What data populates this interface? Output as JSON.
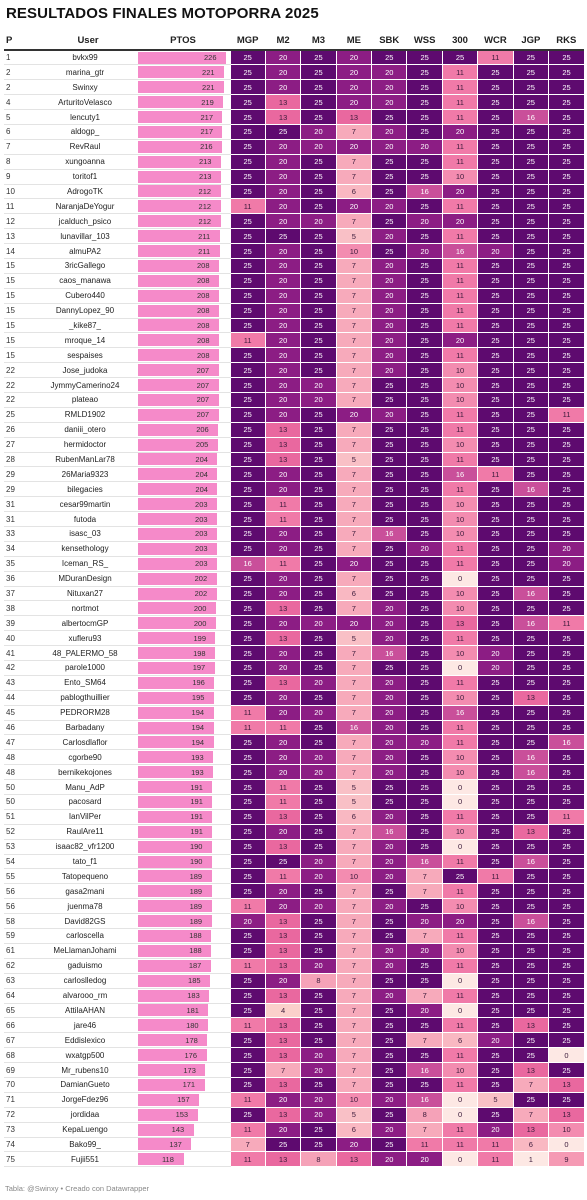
{
  "page": {
    "title": "RESULTADOS FINALES MOTOPORRA 2025",
    "footer": "Tabla: @Swinxy • Creado con Datawrapper"
  },
  "colors": {
    "bar": "#f58ac9",
    "score_scale": {
      "0": "#fde8e4",
      "1": "#fde8e4",
      "4": "#fbd0cb",
      "5": "#f9c0c6",
      "6": "#f9b8c2",
      "7": "#f7aabb",
      "8": "#f5a2b8",
      "9": "#f59ab4",
      "10": "#f38cb0",
      "11": "#f07aa8",
      "13": "#e9689f",
      "16": "#c94f9a",
      "20": "#8c1d84",
      "25": "#5e0a6f"
    }
  },
  "chart_data": {
    "type": "table",
    "columns": [
      "P",
      "User",
      "PTOS",
      "MGP",
      "M2",
      "M3",
      "ME",
      "SBK",
      "WSS",
      "300",
      "WCR",
      "JGP",
      "RKS"
    ],
    "pts_max": 226,
    "rows": [
      {
        "p": "1",
        "user": "bvkx99",
        "pts": 226,
        "scores": [
          25,
          20,
          25,
          20,
          25,
          25,
          25,
          11,
          25,
          25
        ]
      },
      {
        "p": "2",
        "user": "marina_gtr",
        "pts": 221,
        "scores": [
          25,
          20,
          25,
          20,
          20,
          25,
          11,
          25,
          25,
          25
        ]
      },
      {
        "p": "2",
        "user": "Swinxy",
        "pts": 221,
        "scores": [
          25,
          20,
          25,
          20,
          20,
          25,
          11,
          25,
          25,
          25
        ]
      },
      {
        "p": "4",
        "user": "ArturitoVelasco",
        "pts": 219,
        "scores": [
          25,
          13,
          25,
          20,
          20,
          25,
          11,
          25,
          25,
          25
        ]
      },
      {
        "p": "5",
        "user": "lencuty1",
        "pts": 217,
        "scores": [
          25,
          13,
          25,
          13,
          25,
          25,
          11,
          25,
          16,
          25
        ]
      },
      {
        "p": "6",
        "user": "aldogp_",
        "pts": 217,
        "scores": [
          25,
          25,
          20,
          7,
          20,
          25,
          20,
          25,
          25,
          25
        ]
      },
      {
        "p": "7",
        "user": "RevRaul",
        "pts": 216,
        "scores": [
          25,
          20,
          20,
          20,
          20,
          20,
          11,
          25,
          25,
          25
        ]
      },
      {
        "p": "8",
        "user": "xungoanna",
        "pts": 213,
        "scores": [
          25,
          20,
          25,
          7,
          25,
          25,
          11,
          25,
          25,
          25
        ]
      },
      {
        "p": "9",
        "user": "toritof1",
        "pts": 213,
        "scores": [
          25,
          20,
          25,
          7,
          25,
          25,
          10,
          25,
          25,
          25
        ]
      },
      {
        "p": "10",
        "user": "AdrogoTK",
        "pts": 212,
        "scores": [
          25,
          20,
          25,
          6,
          25,
          16,
          20,
          25,
          25,
          25
        ]
      },
      {
        "p": "11",
        "user": "NaranjaDeYogur",
        "pts": 212,
        "scores": [
          11,
          20,
          25,
          20,
          20,
          25,
          11,
          25,
          25,
          25
        ]
      },
      {
        "p": "12",
        "user": "jcalduch_psico",
        "pts": 212,
        "scores": [
          25,
          20,
          20,
          7,
          25,
          20,
          20,
          25,
          25,
          25
        ]
      },
      {
        "p": "13",
        "user": "lunavillar_103",
        "pts": 211,
        "scores": [
          25,
          25,
          25,
          5,
          20,
          25,
          11,
          25,
          25,
          25
        ]
      },
      {
        "p": "14",
        "user": "almuPA2",
        "pts": 211,
        "scores": [
          25,
          20,
          25,
          10,
          25,
          20,
          16,
          20,
          25,
          25
        ]
      },
      {
        "p": "15",
        "user": "3ricGallego",
        "pts": 208,
        "scores": [
          25,
          20,
          25,
          7,
          20,
          25,
          11,
          25,
          25,
          25
        ]
      },
      {
        "p": "15",
        "user": "caos_manawa",
        "pts": 208,
        "scores": [
          25,
          20,
          25,
          7,
          20,
          25,
          11,
          25,
          25,
          25
        ]
      },
      {
        "p": "15",
        "user": "Cubero440",
        "pts": 208,
        "scores": [
          25,
          20,
          25,
          7,
          20,
          25,
          11,
          25,
          25,
          25
        ]
      },
      {
        "p": "15",
        "user": "DannyLopez_90",
        "pts": 208,
        "scores": [
          25,
          20,
          25,
          7,
          20,
          25,
          11,
          25,
          25,
          25
        ]
      },
      {
        "p": "15",
        "user": "_kike87_",
        "pts": 208,
        "scores": [
          25,
          20,
          25,
          7,
          20,
          25,
          11,
          25,
          25,
          25
        ]
      },
      {
        "p": "15",
        "user": "mroque_14",
        "pts": 208,
        "scores": [
          11,
          20,
          25,
          7,
          20,
          25,
          20,
          25,
          25,
          25
        ]
      },
      {
        "p": "15",
        "user": "sespaises",
        "pts": 208,
        "scores": [
          25,
          20,
          25,
          7,
          20,
          25,
          11,
          25,
          25,
          25
        ]
      },
      {
        "p": "22",
        "user": "Jose_judoka",
        "pts": 207,
        "scores": [
          25,
          20,
          25,
          7,
          20,
          25,
          10,
          25,
          25,
          25
        ]
      },
      {
        "p": "22",
        "user": "JymmyCamerino24",
        "pts": 207,
        "scores": [
          25,
          20,
          20,
          7,
          25,
          25,
          10,
          25,
          25,
          25
        ]
      },
      {
        "p": "22",
        "user": "plateao",
        "pts": 207,
        "scores": [
          25,
          20,
          20,
          7,
          25,
          25,
          10,
          25,
          25,
          25
        ]
      },
      {
        "p": "25",
        "user": "RMLD1902",
        "pts": 207,
        "scores": [
          25,
          20,
          25,
          20,
          20,
          25,
          11,
          25,
          25,
          11
        ]
      },
      {
        "p": "26",
        "user": "daniii_otero",
        "pts": 206,
        "scores": [
          25,
          13,
          25,
          7,
          25,
          25,
          11,
          25,
          25,
          25
        ]
      },
      {
        "p": "27",
        "user": "hermidoctor",
        "pts": 205,
        "scores": [
          25,
          13,
          25,
          7,
          25,
          25,
          10,
          25,
          25,
          25
        ]
      },
      {
        "p": "28",
        "user": "RubenManLar78",
        "pts": 204,
        "scores": [
          25,
          13,
          25,
          5,
          25,
          25,
          11,
          25,
          25,
          25
        ]
      },
      {
        "p": "29",
        "user": "26Maria9323",
        "pts": 204,
        "scores": [
          25,
          20,
          25,
          7,
          25,
          25,
          16,
          11,
          25,
          25
        ]
      },
      {
        "p": "29",
        "user": "bilegacies",
        "pts": 204,
        "scores": [
          25,
          20,
          25,
          7,
          25,
          25,
          11,
          25,
          16,
          25
        ]
      },
      {
        "p": "31",
        "user": "cesar99martin",
        "pts": 203,
        "scores": [
          25,
          11,
          25,
          7,
          25,
          25,
          10,
          25,
          25,
          25
        ]
      },
      {
        "p": "31",
        "user": "futoda",
        "pts": 203,
        "scores": [
          25,
          11,
          25,
          7,
          25,
          25,
          10,
          25,
          25,
          25
        ]
      },
      {
        "p": "33",
        "user": "isasc_03",
        "pts": 203,
        "scores": [
          25,
          20,
          25,
          7,
          16,
          25,
          10,
          25,
          25,
          25
        ]
      },
      {
        "p": "34",
        "user": "kensethology",
        "pts": 203,
        "scores": [
          25,
          20,
          25,
          7,
          25,
          20,
          11,
          25,
          25,
          20
        ]
      },
      {
        "p": "35",
        "user": "Iceman_RS_",
        "pts": 203,
        "scores": [
          16,
          11,
          25,
          20,
          25,
          25,
          11,
          25,
          25,
          20
        ]
      },
      {
        "p": "36",
        "user": "MDuranDesign",
        "pts": 202,
        "scores": [
          25,
          20,
          25,
          7,
          25,
          25,
          0,
          25,
          25,
          25
        ]
      },
      {
        "p": "37",
        "user": "Nituxan27",
        "pts": 202,
        "scores": [
          25,
          20,
          25,
          6,
          25,
          25,
          10,
          25,
          16,
          25
        ]
      },
      {
        "p": "38",
        "user": "nortmot",
        "pts": 200,
        "scores": [
          25,
          13,
          25,
          7,
          20,
          25,
          10,
          25,
          25,
          25
        ]
      },
      {
        "p": "39",
        "user": "albertocmGP",
        "pts": 200,
        "scores": [
          25,
          20,
          20,
          20,
          20,
          25,
          13,
          25,
          16,
          11
        ]
      },
      {
        "p": "40",
        "user": "xufleru93",
        "pts": 199,
        "scores": [
          25,
          13,
          25,
          5,
          20,
          25,
          11,
          25,
          25,
          25
        ]
      },
      {
        "p": "41",
        "user": "48_PALERMO_58",
        "pts": 198,
        "scores": [
          25,
          20,
          25,
          7,
          16,
          25,
          10,
          20,
          25,
          25
        ]
      },
      {
        "p": "42",
        "user": "parole1000",
        "pts": 197,
        "scores": [
          25,
          20,
          25,
          7,
          25,
          25,
          0,
          20,
          25,
          25
        ]
      },
      {
        "p": "43",
        "user": "Ento_SM64",
        "pts": 196,
        "scores": [
          25,
          13,
          20,
          7,
          20,
          25,
          11,
          25,
          25,
          25
        ]
      },
      {
        "p": "44",
        "user": "pablogthuillier",
        "pts": 195,
        "scores": [
          25,
          20,
          25,
          7,
          20,
          25,
          10,
          25,
          13,
          25
        ]
      },
      {
        "p": "45",
        "user": "PEDRORM28",
        "pts": 194,
        "scores": [
          11,
          20,
          20,
          7,
          20,
          25,
          16,
          25,
          25,
          25
        ]
      },
      {
        "p": "46",
        "user": "Barbadany",
        "pts": 194,
        "scores": [
          11,
          11,
          25,
          16,
          20,
          25,
          11,
          25,
          25,
          25
        ]
      },
      {
        "p": "47",
        "user": "Carlosdlaflor",
        "pts": 194,
        "scores": [
          25,
          20,
          25,
          7,
          20,
          20,
          11,
          25,
          25,
          16
        ]
      },
      {
        "p": "48",
        "user": "cgorbe90",
        "pts": 193,
        "scores": [
          25,
          20,
          20,
          7,
          20,
          25,
          10,
          25,
          16,
          25
        ]
      },
      {
        "p": "48",
        "user": "bernikekojones",
        "pts": 193,
        "scores": [
          25,
          20,
          20,
          7,
          20,
          25,
          10,
          25,
          16,
          25
        ]
      },
      {
        "p": "50",
        "user": "Manu_AdP",
        "pts": 191,
        "scores": [
          25,
          11,
          25,
          5,
          25,
          25,
          0,
          25,
          25,
          25
        ]
      },
      {
        "p": "50",
        "user": "pacosard",
        "pts": 191,
        "scores": [
          25,
          11,
          25,
          5,
          25,
          25,
          0,
          25,
          25,
          25
        ]
      },
      {
        "p": "51",
        "user": "IanVilPer",
        "pts": 191,
        "scores": [
          25,
          13,
          25,
          6,
          20,
          25,
          11,
          25,
          25,
          11
        ]
      },
      {
        "p": "52",
        "user": "RaulAre11",
        "pts": 191,
        "scores": [
          25,
          20,
          25,
          7,
          16,
          25,
          10,
          25,
          13,
          25
        ]
      },
      {
        "p": "53",
        "user": "isaac82_vfr1200",
        "pts": 190,
        "scores": [
          25,
          13,
          25,
          7,
          20,
          25,
          0,
          25,
          25,
          25
        ]
      },
      {
        "p": "54",
        "user": "tato_f1",
        "pts": 190,
        "scores": [
          25,
          25,
          20,
          7,
          20,
          16,
          11,
          25,
          16,
          25
        ]
      },
      {
        "p": "55",
        "user": "Tatopequeno",
        "pts": 189,
        "scores": [
          25,
          11,
          20,
          10,
          20,
          7,
          25,
          11,
          25,
          25
        ]
      },
      {
        "p": "56",
        "user": "gasa2mani",
        "pts": 189,
        "scores": [
          25,
          20,
          25,
          7,
          25,
          7,
          11,
          25,
          25,
          25
        ]
      },
      {
        "p": "56",
        "user": "juenma78",
        "pts": 189,
        "scores": [
          11,
          20,
          20,
          7,
          20,
          25,
          10,
          25,
          25,
          25
        ]
      },
      {
        "p": "58",
        "user": "David82GS",
        "pts": 189,
        "scores": [
          20,
          13,
          25,
          7,
          25,
          20,
          20,
          25,
          16,
          25
        ]
      },
      {
        "p": "59",
        "user": "carloscella",
        "pts": 188,
        "scores": [
          25,
          13,
          25,
          7,
          25,
          7,
          11,
          25,
          25,
          25
        ]
      },
      {
        "p": "61",
        "user": "MeLlamanJohami",
        "pts": 188,
        "scores": [
          25,
          13,
          25,
          7,
          20,
          20,
          10,
          25,
          25,
          25
        ]
      },
      {
        "p": "62",
        "user": "gaduismo",
        "pts": 187,
        "scores": [
          11,
          13,
          20,
          7,
          20,
          25,
          11,
          25,
          25,
          25
        ]
      },
      {
        "p": "63",
        "user": "carloslledog",
        "pts": 185,
        "scores": [
          25,
          20,
          8,
          7,
          25,
          25,
          0,
          25,
          25,
          25
        ]
      },
      {
        "p": "64",
        "user": "alvarooo_rm",
        "pts": 183,
        "scores": [
          25,
          13,
          25,
          7,
          20,
          7,
          11,
          25,
          25,
          25
        ]
      },
      {
        "p": "65",
        "user": "AttilaAHAN",
        "pts": 181,
        "scores": [
          25,
          4,
          25,
          7,
          25,
          20,
          0,
          25,
          25,
          25
        ]
      },
      {
        "p": "66",
        "user": "jare46",
        "pts": 180,
        "scores": [
          11,
          13,
          25,
          7,
          25,
          25,
          11,
          25,
          13,
          25
        ]
      },
      {
        "p": "67",
        "user": "Eddislexico",
        "pts": 178,
        "scores": [
          25,
          13,
          25,
          7,
          25,
          7,
          6,
          20,
          25,
          25
        ]
      },
      {
        "p": "68",
        "user": "wxatgp500",
        "pts": 176,
        "scores": [
          25,
          13,
          20,
          7,
          25,
          25,
          11,
          25,
          25,
          0
        ]
      },
      {
        "p": "69",
        "user": "Mr_rubens10",
        "pts": 173,
        "scores": [
          25,
          7,
          20,
          7,
          25,
          16,
          10,
          25,
          13,
          25
        ]
      },
      {
        "p": "70",
        "user": "DamianGueto",
        "pts": 171,
        "scores": [
          25,
          13,
          25,
          7,
          25,
          25,
          11,
          25,
          7,
          13
        ]
      },
      {
        "p": "71",
        "user": "JorgeFdez96",
        "pts": 157,
        "scores": [
          11,
          20,
          20,
          10,
          20,
          16,
          0,
          5,
          25,
          25
        ]
      },
      {
        "p": "72",
        "user": "jordidaa",
        "pts": 153,
        "scores": [
          25,
          13,
          20,
          5,
          25,
          8,
          0,
          25,
          7,
          13
        ]
      },
      {
        "p": "73",
        "user": "KepaLuengo",
        "pts": 143,
        "scores": [
          11,
          20,
          25,
          6,
          20,
          7,
          11,
          20,
          13,
          10
        ]
      },
      {
        "p": "74",
        "user": "Bako99_",
        "pts": 137,
        "scores": [
          7,
          25,
          25,
          20,
          25,
          11,
          11,
          11,
          6,
          0
        ]
      },
      {
        "p": "75",
        "user": "Fujii551",
        "pts": 118,
        "scores": [
          11,
          13,
          8,
          13,
          20,
          20,
          0,
          11,
          1,
          9
        ]
      }
    ]
  }
}
